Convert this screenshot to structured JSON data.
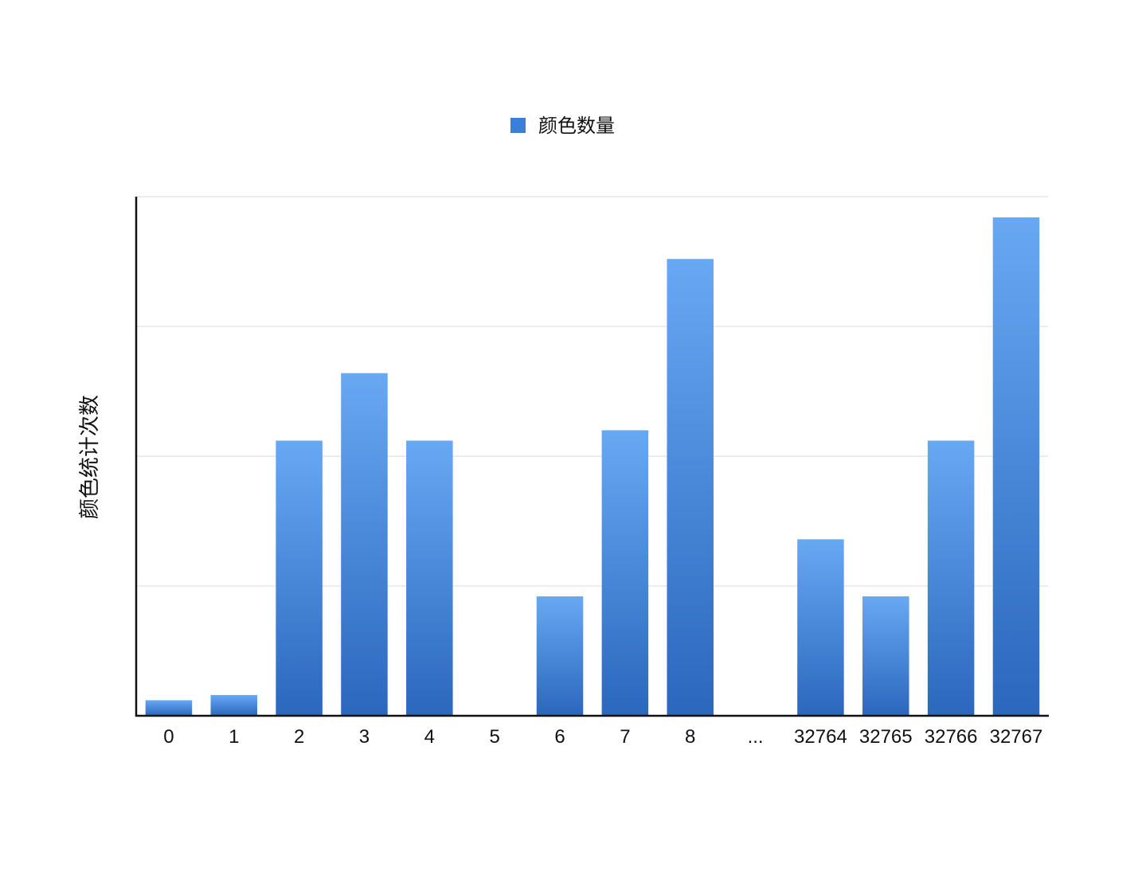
{
  "chart_data": {
    "type": "bar",
    "title": "",
    "xlabel": "",
    "ylabel": "颜色统计次数",
    "categories": [
      "0",
      "1",
      "2",
      "3",
      "4",
      "5",
      "6",
      "7",
      "8",
      "...",
      "32764",
      "32765",
      "32766",
      "32767"
    ],
    "series": [
      {
        "name": "颜色数量",
        "values": [
          0.12,
          0.16,
          2.12,
          2.64,
          2.12,
          0,
          0.92,
          2.2,
          3.52,
          0,
          1.36,
          0.92,
          2.12,
          3.84
        ]
      }
    ],
    "ylim": [
      0,
      4
    ],
    "yticks": [
      0,
      1,
      2,
      3,
      4
    ],
    "ytick_labels_shown": false,
    "grid": true,
    "legend_position": "top-center",
    "colors": {
      "bar_top": "#67a8f3",
      "bar_bottom": "#2b67bd",
      "legend_swatch": "#3b7fd8",
      "gridline": "#d9d9d9",
      "axis": "#111111"
    }
  }
}
